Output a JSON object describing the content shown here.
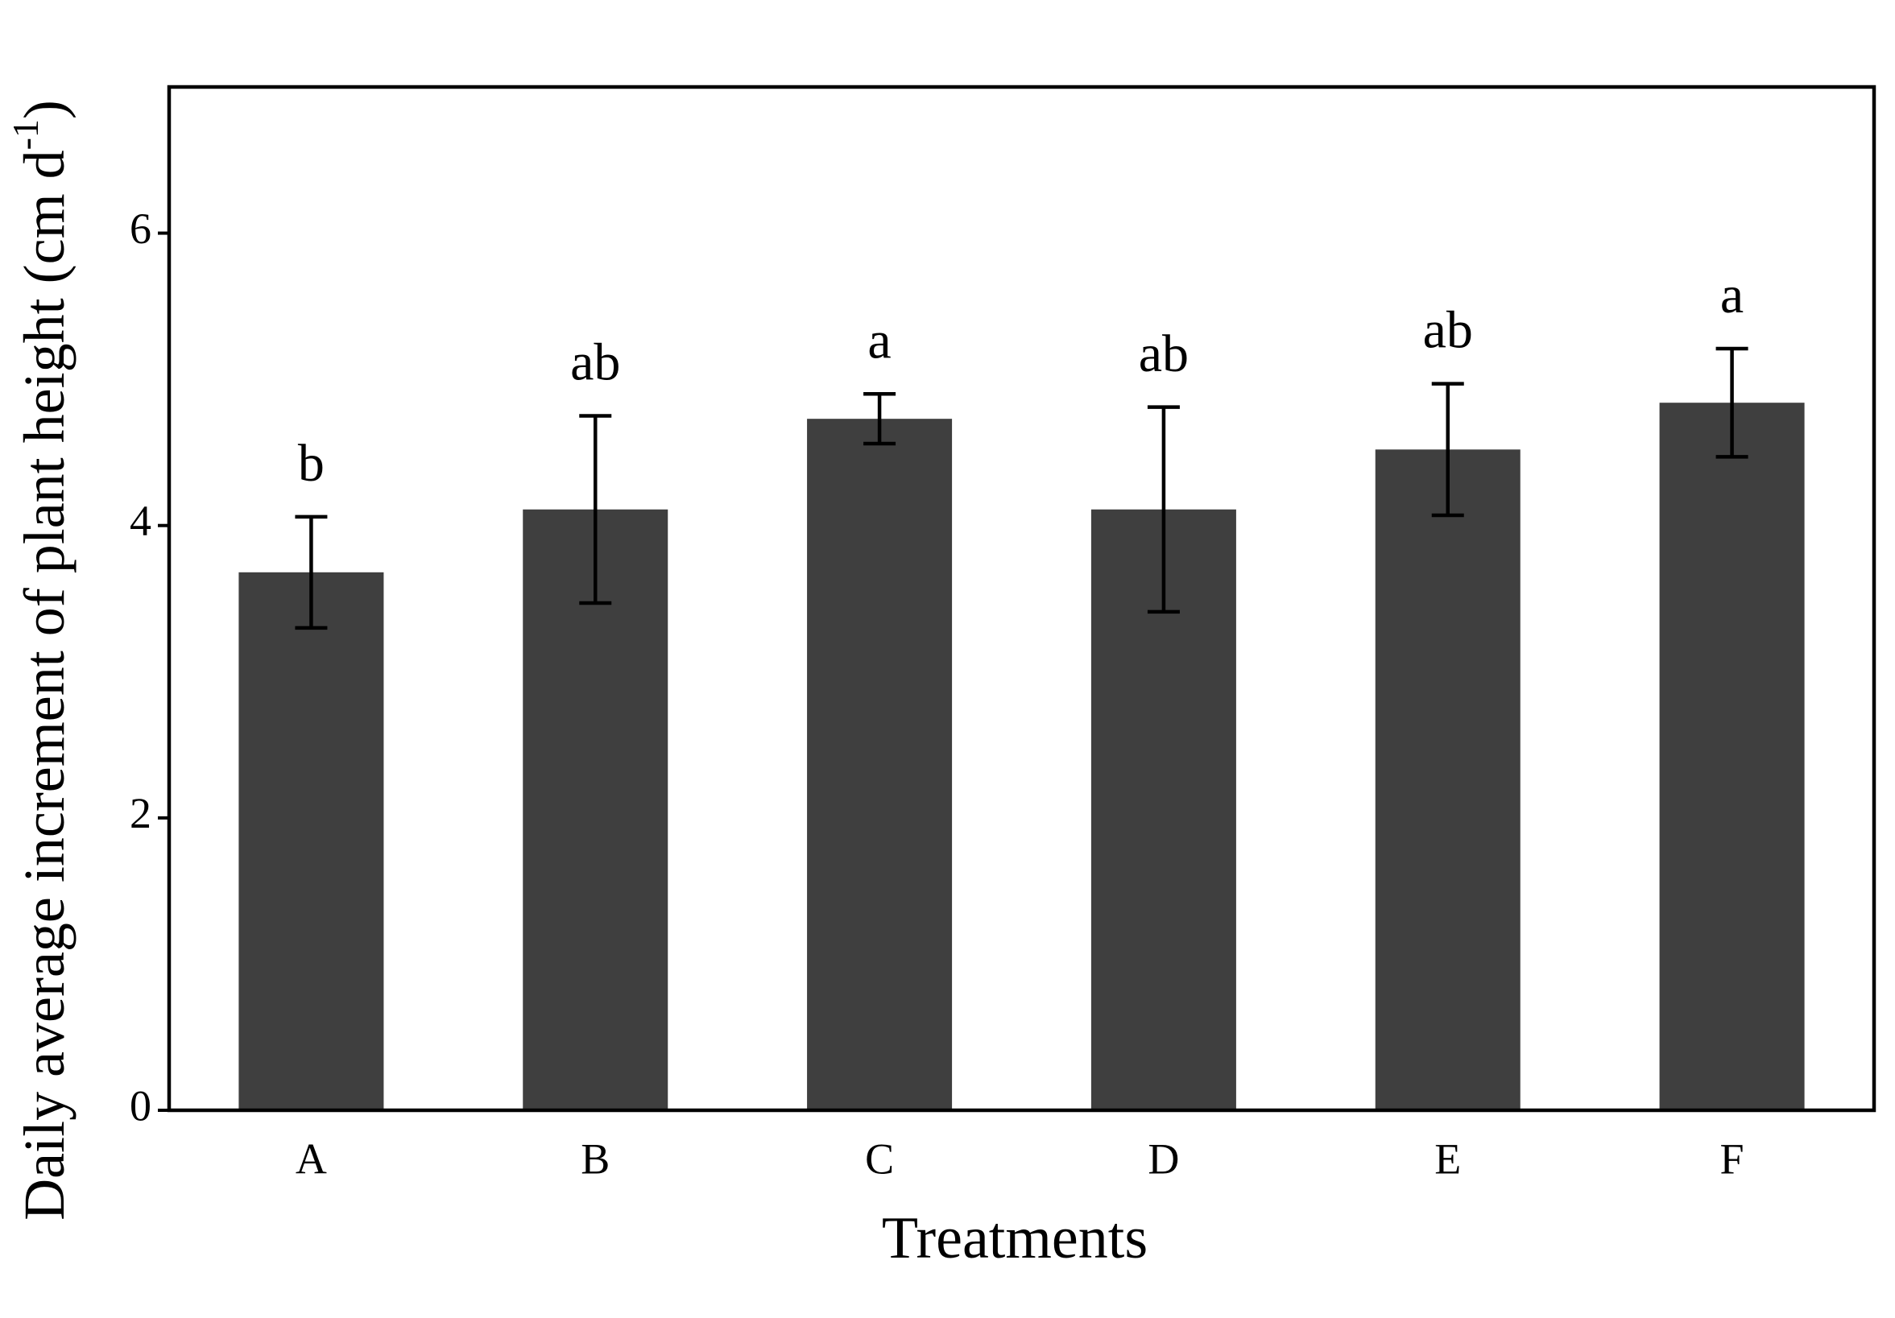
{
  "chart_data": {
    "type": "bar",
    "xlabel": "Treatments",
    "ylabel": [
      "Daily average increment of plant height (cm d",
      "-1",
      ")"
    ],
    "categories": [
      "A",
      "B",
      "C",
      "D",
      "E",
      "F"
    ],
    "values": [
      3.68,
      4.11,
      4.73,
      4.11,
      4.52,
      4.84
    ],
    "errors": [
      0.38,
      0.64,
      0.17,
      0.7,
      0.45,
      0.37
    ],
    "annotations": [
      "b",
      "ab",
      "a",
      "ab",
      "ab",
      "a"
    ],
    "color": "#3f3f3f",
    "ylim": [
      0,
      7
    ],
    "yticks": [
      0,
      2,
      4,
      6
    ],
    "grid": false
  }
}
